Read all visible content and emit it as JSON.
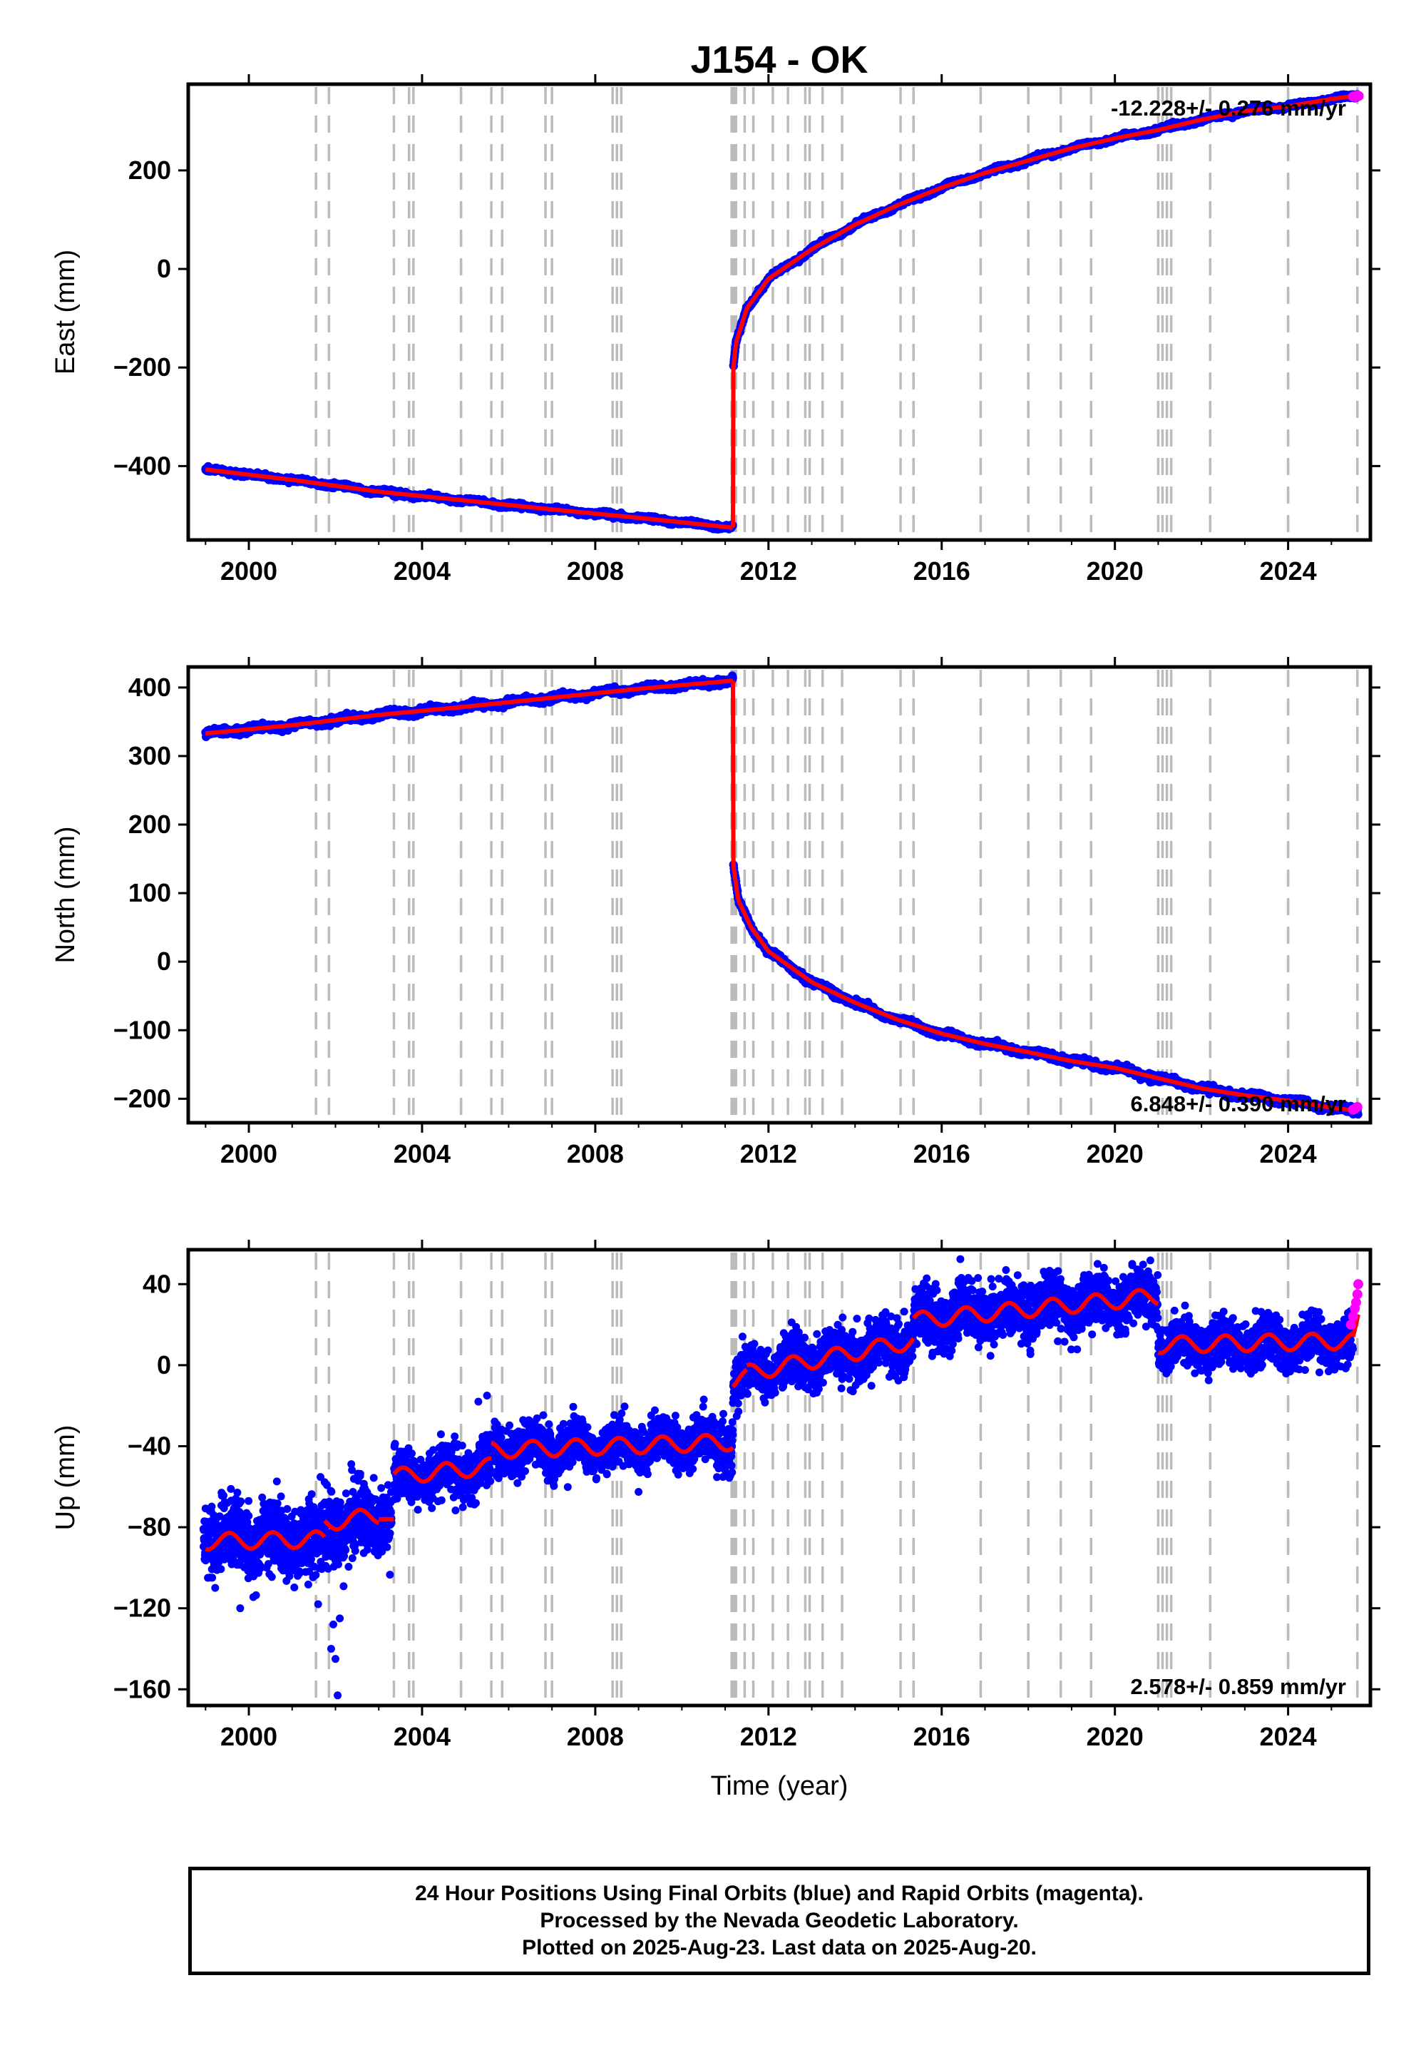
{
  "footer": {
    "line1": "24 Hour Positions Using Final Orbits (blue) and Rapid Orbits (magenta).",
    "line2": "Processed by the Nevada Geodetic Laboratory.",
    "line3": "Plotted on 2025-Aug-23. Last data on 2025-Aug-20."
  },
  "colors": {
    "final": "#0000ff",
    "rapid": "#ff00ff",
    "model": "#ff0000",
    "event_lines": "#bbbbbb"
  },
  "chart_data": {
    "type": "scatter",
    "title": "J154 - OK",
    "xlabel": "Time (year)",
    "xlim": [
      1998.6,
      2025.9
    ],
    "x_ticks": [
      2000,
      2004,
      2008,
      2012,
      2016,
      2020,
      2024
    ],
    "x_tick_labels": [
      "2000",
      "2004",
      "2008",
      "2012",
      "2016",
      "2020",
      "2024"
    ],
    "event_lines": [
      2001.55,
      2001.85,
      2003.35,
      2003.7,
      2003.8,
      2004.9,
      2005.6,
      2005.85,
      2006.85,
      2007.0,
      2008.4,
      2008.5,
      2008.6,
      2011.15,
      2011.2,
      2011.25,
      2011.45,
      2011.65,
      2012.1,
      2012.45,
      2012.85,
      2012.95,
      2013.25,
      2013.7,
      2015.05,
      2015.35,
      2016.9,
      2018.0,
      2018.75,
      2019.45,
      2021.0,
      2021.1,
      2021.2,
      2021.3,
      2022.2,
      2024.0,
      2025.6
    ],
    "panels": [
      {
        "name": "east",
        "ylabel": "East (mm)",
        "ylim": [
          -550,
          375
        ],
        "y_ticks": [
          -400,
          -200,
          0,
          200
        ],
        "y_tick_labels": [
          "−400",
          "−200",
          "0",
          "200"
        ],
        "rate_text": "-12.228+/- 0.276 mm/yr",
        "rate_position": "top-right",
        "model_segments": [
          {
            "x": [
              1999.0,
              2001.0,
              2003.0,
              2005.0,
              2007.0,
              2009.0,
              2011.18
            ],
            "y": [
              -407,
              -428,
              -452,
              -470,
              -488,
              -505,
              -525
            ]
          },
          {
            "x": [
              2011.18,
              2011.19
            ],
            "y": [
              -525,
              -200
            ]
          },
          {
            "x": [
              2011.19,
              2011.25,
              2011.5,
              2012.0,
              2013.0,
              2014.0,
              2015.0,
              2016.0,
              2017.0,
              2018.0,
              2019.0,
              2020.0,
              2021.0,
              2022.0,
              2023.0,
              2024.0,
              2025.0,
              2025.62
            ],
            "y": [
              -200,
              -150,
              -80,
              -20,
              40,
              90,
              130,
              165,
              195,
              220,
              245,
              265,
              282,
              303,
              320,
              330,
              345,
              352
            ]
          }
        ],
        "rapid_points": [
          {
            "x": 2025.5,
            "y": 350
          },
          {
            "x": 2025.55,
            "y": 349
          },
          {
            "x": 2025.6,
            "y": 352
          },
          {
            "x": 2025.63,
            "y": 351
          }
        ]
      },
      {
        "name": "north",
        "ylabel": "North (mm)",
        "ylim": [
          -235,
          430
        ],
        "y_ticks": [
          -200,
          -100,
          0,
          100,
          200,
          300,
          400
        ],
        "y_tick_labels": [
          "−200",
          "−100",
          "0",
          "100",
          "200",
          "300",
          "400"
        ],
        "rate_text": "6.848+/- 0.390 mm/yr",
        "rate_position": "bottom-right",
        "model_segments": [
          {
            "x": [
              1999.0,
              2001.0,
              2003.0,
              2005.0,
              2007.0,
              2009.0,
              2011.18
            ],
            "y": [
              333,
              345,
              360,
              372,
              385,
              398,
              410
            ]
          },
          {
            "x": [
              2011.18,
              2011.19
            ],
            "y": [
              410,
              140
            ]
          },
          {
            "x": [
              2011.19,
              2011.3,
              2011.6,
              2012.0,
              2013.0,
              2014.0,
              2015.0,
              2016.0,
              2017.0,
              2018.0,
              2019.0,
              2020.0,
              2021.0,
              2022.0,
              2023.0,
              2024.0,
              2025.0,
              2025.62
            ],
            "y": [
              140,
              90,
              50,
              15,
              -30,
              -60,
              -85,
              -105,
              -120,
              -132,
              -145,
              -155,
              -170,
              -185,
              -195,
              -203,
              -213,
              -218
            ]
          }
        ],
        "rapid_points": [
          {
            "x": 2025.5,
            "y": -216
          },
          {
            "x": 2025.55,
            "y": -214
          },
          {
            "x": 2025.6,
            "y": -212
          }
        ]
      },
      {
        "name": "up",
        "ylabel": "Up (mm)",
        "ylim": [
          -168,
          57
        ],
        "y_ticks": [
          -160,
          -120,
          -80,
          -40,
          0,
          40
        ],
        "y_tick_labels": [
          "−160",
          "−120",
          "−80",
          "−40",
          "0",
          "40"
        ],
        "rate_text": "2.578+/- 0.859 mm/yr",
        "rate_position": "bottom-right",
        "model_segments": [
          {
            "x": [
              1999.0,
              2001.75
            ],
            "y": [
              -87,
              -86
            ],
            "amp": 4
          },
          {
            "x": [
              2001.75,
              2003.0
            ],
            "y": [
              -78,
              -74
            ],
            "amp": 4
          },
          {
            "x": [
              2003.0,
              2003.35
            ],
            "y": [
              -76,
              -76
            ],
            "amp": 0
          },
          {
            "x": [
              2003.35,
              2005.6
            ],
            "y": [
              -55,
              -50
            ],
            "amp": 4
          },
          {
            "x": [
              2005.6,
              2011.18
            ],
            "y": [
              -42,
              -38
            ],
            "amp": 4
          },
          {
            "x": [
              2011.18,
              2011.5
            ],
            "y": [
              -8,
              -6
            ],
            "amp": 4
          },
          {
            "x": [
              2011.5,
              2015.35
            ],
            "y": [
              -4,
              12
            ],
            "amp": 4
          },
          {
            "x": [
              2015.35,
              2021.0
            ],
            "y": [
              22,
              34
            ],
            "amp": 4
          },
          {
            "x": [
              2021.0,
              2025.5
            ],
            "y": [
              10,
              12
            ],
            "amp": 4
          },
          {
            "x": [
              2025.5,
              2025.62
            ],
            "y": [
              14,
              25
            ],
            "amp": 0
          }
        ],
        "data_segments": [
          {
            "x": [
              1998.95,
              2001.7
            ],
            "y0": -86,
            "y1": -86,
            "sd": 8.5,
            "amp": 4
          },
          {
            "x": [
              2001.7,
              2003.3
            ],
            "y0": -82,
            "y1": -74,
            "sd": 9,
            "amp": 4
          },
          {
            "x": [
              2003.35,
              2005.6
            ],
            "y0": -55,
            "y1": -50,
            "sd": 6,
            "amp": 4
          },
          {
            "x": [
              2005.6,
              2011.18
            ],
            "y0": -42,
            "y1": -38,
            "sd": 5.5,
            "amp": 4
          },
          {
            "x": [
              2011.18,
              2011.5
            ],
            "y0": -8,
            "y1": -6,
            "sd": 6,
            "amp": 4
          },
          {
            "x": [
              2011.5,
              2015.35
            ],
            "y0": -4,
            "y1": 12,
            "sd": 6,
            "amp": 4
          },
          {
            "x": [
              2015.35,
              2021.0
            ],
            "y0": 22,
            "y1": 34,
            "sd": 6.5,
            "amp": 4
          },
          {
            "x": [
              2021.0,
              2025.5
            ],
            "y0": 10,
            "y1": 12,
            "sd": 5.5,
            "amp": 4
          }
        ],
        "outliers": [
          {
            "x": 2001.9,
            "y": -140
          },
          {
            "x": 2002.0,
            "y": -145
          },
          {
            "x": 2002.05,
            "y": -163
          },
          {
            "x": 2001.95,
            "y": -128
          },
          {
            "x": 2002.1,
            "y": -125
          },
          {
            "x": 1999.8,
            "y": -120
          },
          {
            "x": 2001.6,
            "y": -118
          },
          {
            "x": 2005.3,
            "y": -18
          },
          {
            "x": 2005.5,
            "y": -15
          },
          {
            "x": 2019.6,
            "y": 50
          },
          {
            "x": 2020.4,
            "y": 50
          }
        ],
        "rapid_points": [
          {
            "x": 2025.45,
            "y": 20
          },
          {
            "x": 2025.5,
            "y": 24
          },
          {
            "x": 2025.54,
            "y": 28
          },
          {
            "x": 2025.57,
            "y": 31
          },
          {
            "x": 2025.6,
            "y": 35
          },
          {
            "x": 2025.62,
            "y": 40
          }
        ]
      }
    ]
  }
}
